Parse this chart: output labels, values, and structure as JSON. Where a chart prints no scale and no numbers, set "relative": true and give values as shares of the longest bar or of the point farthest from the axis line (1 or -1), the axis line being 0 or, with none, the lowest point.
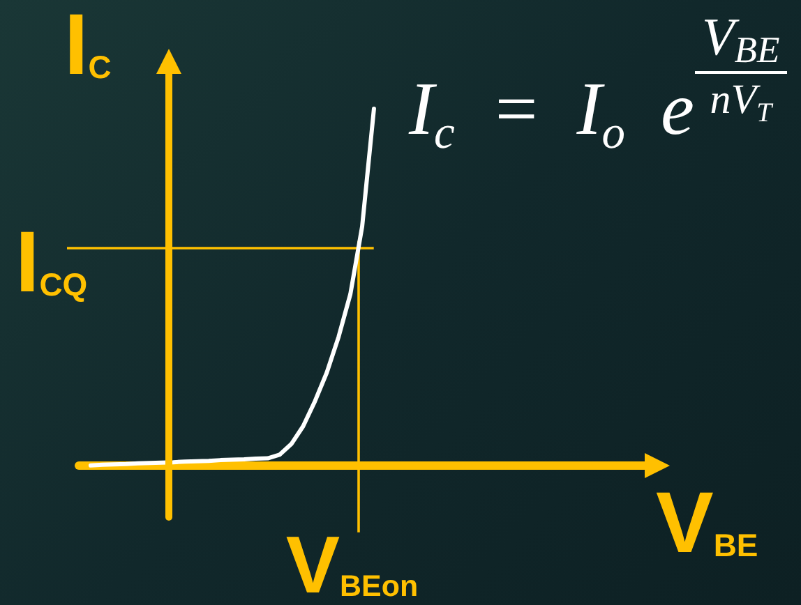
{
  "chart_data": {
    "type": "line",
    "relative": true,
    "xlabel": "V$_{BE}$",
    "ylabel": "I$_{C}$",
    "annotations": [
      "I$_{c}$ = I$_{o}$ e",
      "V$_{BE}$",
      "nV$_{T}$"
    ],
    "categories": [
      null,
      null,
      null,
      null,
      null,
      null,
      null,
      null,
      null,
      null,
      null,
      null,
      null,
      null,
      null,
      null,
      null,
      null,
      null,
      null,
      null,
      null,
      null,
      null,
      null,
      null,
      null,
      null,
      null,
      null,
      null,
      null,
      null,
      null,
      null,
      null,
      null,
      null,
      null,
      null,
      null,
      null,
      null,
      null,
      null,
      null,
      null,
      null,
      null,
      null
    ],
    "values": [
      null,
      0,
      0.002,
      0.003,
      0.004,
      0.006,
      0.007,
      0.008,
      0.009,
      0.011,
      0.012,
      0.013,
      0.015,
      0.016,
      0.017,
      0.019,
      0.02,
      0.03,
      0.06,
      0.11,
      0.18,
      0.26,
      0.36,
      0.48,
      0.67,
      1,
      null,
      null,
      null,
      null,
      null,
      null,
      null,
      null,
      null,
      null,
      null,
      null,
      null,
      null,
      null,
      null,
      null,
      null,
      null,
      null,
      null,
      null,
      null,
      null
    ],
    "color": "#ffffff",
    "line_style": "solid",
    "ref_lines": [
      {
        "axis": "y",
        "value": 0.61,
        "label": "I$_{CQ}$",
        "color": "#ffc000"
      },
      {
        "axis": "x",
        "label": "V$_{BEon}$",
        "color": "#ffc000"
      }
    ]
  }
}
